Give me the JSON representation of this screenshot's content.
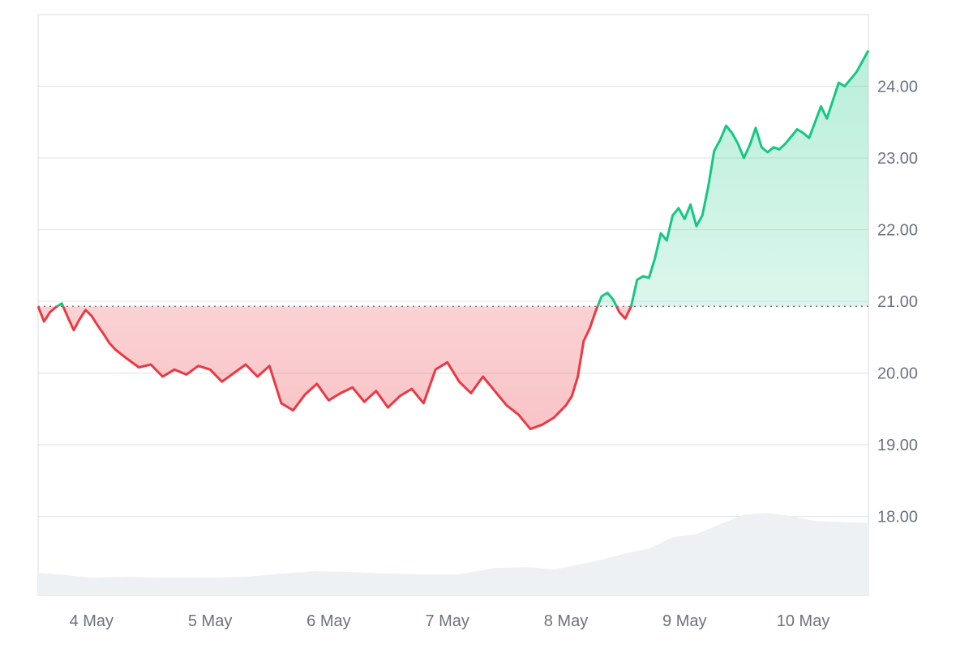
{
  "chart_data": {
    "type": "area",
    "title": "",
    "xlabel": "",
    "ylabel": "",
    "x_ticks": [
      "4 May",
      "5 May",
      "6 May",
      "7 May",
      "8 May",
      "9 May",
      "10 May"
    ],
    "y_ticks": [
      "18.00",
      "19.00",
      "20.00",
      "21.00",
      "22.00",
      "23.00",
      "24.00"
    ],
    "ylim": [
      16.9,
      25.0
    ],
    "baseline": 20.93,
    "grid": true,
    "colors": {
      "up": "#16c784",
      "down": "#ea3943",
      "up_fill": "#16c784",
      "down_fill": "#ea3943",
      "grid": "#e5e7eb",
      "baseline": "#6b7280",
      "volume": "#eef1f4",
      "axis_text": "#6b7280"
    },
    "series": [
      {
        "x": [
          3.55,
          3.6,
          3.65,
          3.7,
          3.75,
          3.8,
          3.85,
          3.9,
          3.95,
          4.0,
          4.05,
          4.1,
          4.15,
          4.2,
          4.3,
          4.4,
          4.5,
          4.6,
          4.7,
          4.8,
          4.9,
          5.0,
          5.1,
          5.2,
          5.3,
          5.4,
          5.5,
          5.6,
          5.7,
          5.8,
          5.9,
          6.0,
          6.1,
          6.2,
          6.3,
          6.4,
          6.5,
          6.6,
          6.7,
          6.8,
          6.9,
          7.0,
          7.1,
          7.2,
          7.3,
          7.4,
          7.5,
          7.6,
          7.7,
          7.8,
          7.9,
          8.0,
          8.05,
          8.1,
          8.15,
          8.2,
          8.25,
          8.3,
          8.35,
          8.4,
          8.45,
          8.5,
          8.55,
          8.6,
          8.65,
          8.7,
          8.75,
          8.8,
          8.85,
          8.9,
          8.95,
          9.0,
          9.05,
          9.1,
          9.15,
          9.2,
          9.25,
          9.3,
          9.35,
          9.4,
          9.45,
          9.5,
          9.55,
          9.6,
          9.65,
          9.7,
          9.75,
          9.8,
          9.85,
          9.9,
          9.95,
          10.0,
          10.05,
          10.1,
          10.15,
          10.2,
          10.25,
          10.3,
          10.35,
          10.4,
          10.45,
          10.5,
          10.55
        ],
        "values": [
          20.93,
          20.72,
          20.85,
          20.92,
          20.97,
          20.78,
          20.6,
          20.75,
          20.88,
          20.8,
          20.67,
          20.55,
          20.42,
          20.33,
          20.2,
          20.08,
          20.12,
          19.95,
          20.05,
          19.98,
          20.1,
          20.05,
          19.88,
          20.0,
          20.12,
          19.95,
          20.1,
          19.58,
          19.48,
          19.7,
          19.85,
          19.62,
          19.72,
          19.8,
          19.6,
          19.75,
          19.52,
          19.68,
          19.78,
          19.58,
          20.05,
          20.15,
          19.88,
          19.72,
          19.95,
          19.75,
          19.55,
          19.42,
          19.22,
          19.28,
          19.38,
          19.55,
          19.68,
          19.95,
          20.45,
          20.62,
          20.86,
          21.07,
          21.12,
          21.02,
          20.85,
          20.76,
          20.93,
          21.3,
          21.35,
          21.33,
          21.6,
          21.95,
          21.85,
          22.2,
          22.3,
          22.15,
          22.35,
          22.05,
          22.2,
          22.6,
          23.1,
          23.25,
          23.45,
          23.35,
          23.2,
          23.0,
          23.18,
          23.42,
          23.15,
          23.08,
          23.15,
          23.12,
          23.2,
          23.3,
          23.4,
          23.35,
          23.28,
          23.5,
          23.72,
          23.55,
          23.8,
          24.05,
          24.0,
          24.1,
          24.2,
          24.35,
          24.5
        ]
      }
    ],
    "volume": {
      "x": [
        3.55,
        3.8,
        4.0,
        4.3,
        4.6,
        5.0,
        5.3,
        5.6,
        5.9,
        6.2,
        6.5,
        6.8,
        7.1,
        7.4,
        7.7,
        7.9,
        8.1,
        8.3,
        8.5,
        8.7,
        8.9,
        9.1,
        9.3,
        9.5,
        9.7,
        9.9,
        10.1,
        10.3,
        10.55
      ],
      "values": [
        0.28,
        0.25,
        0.22,
        0.23,
        0.22,
        0.22,
        0.23,
        0.27,
        0.3,
        0.29,
        0.27,
        0.26,
        0.26,
        0.34,
        0.35,
        0.32,
        0.38,
        0.44,
        0.52,
        0.58,
        0.72,
        0.76,
        0.88,
        1.0,
        1.02,
        0.98,
        0.92,
        0.91,
        0.9
      ]
    }
  }
}
